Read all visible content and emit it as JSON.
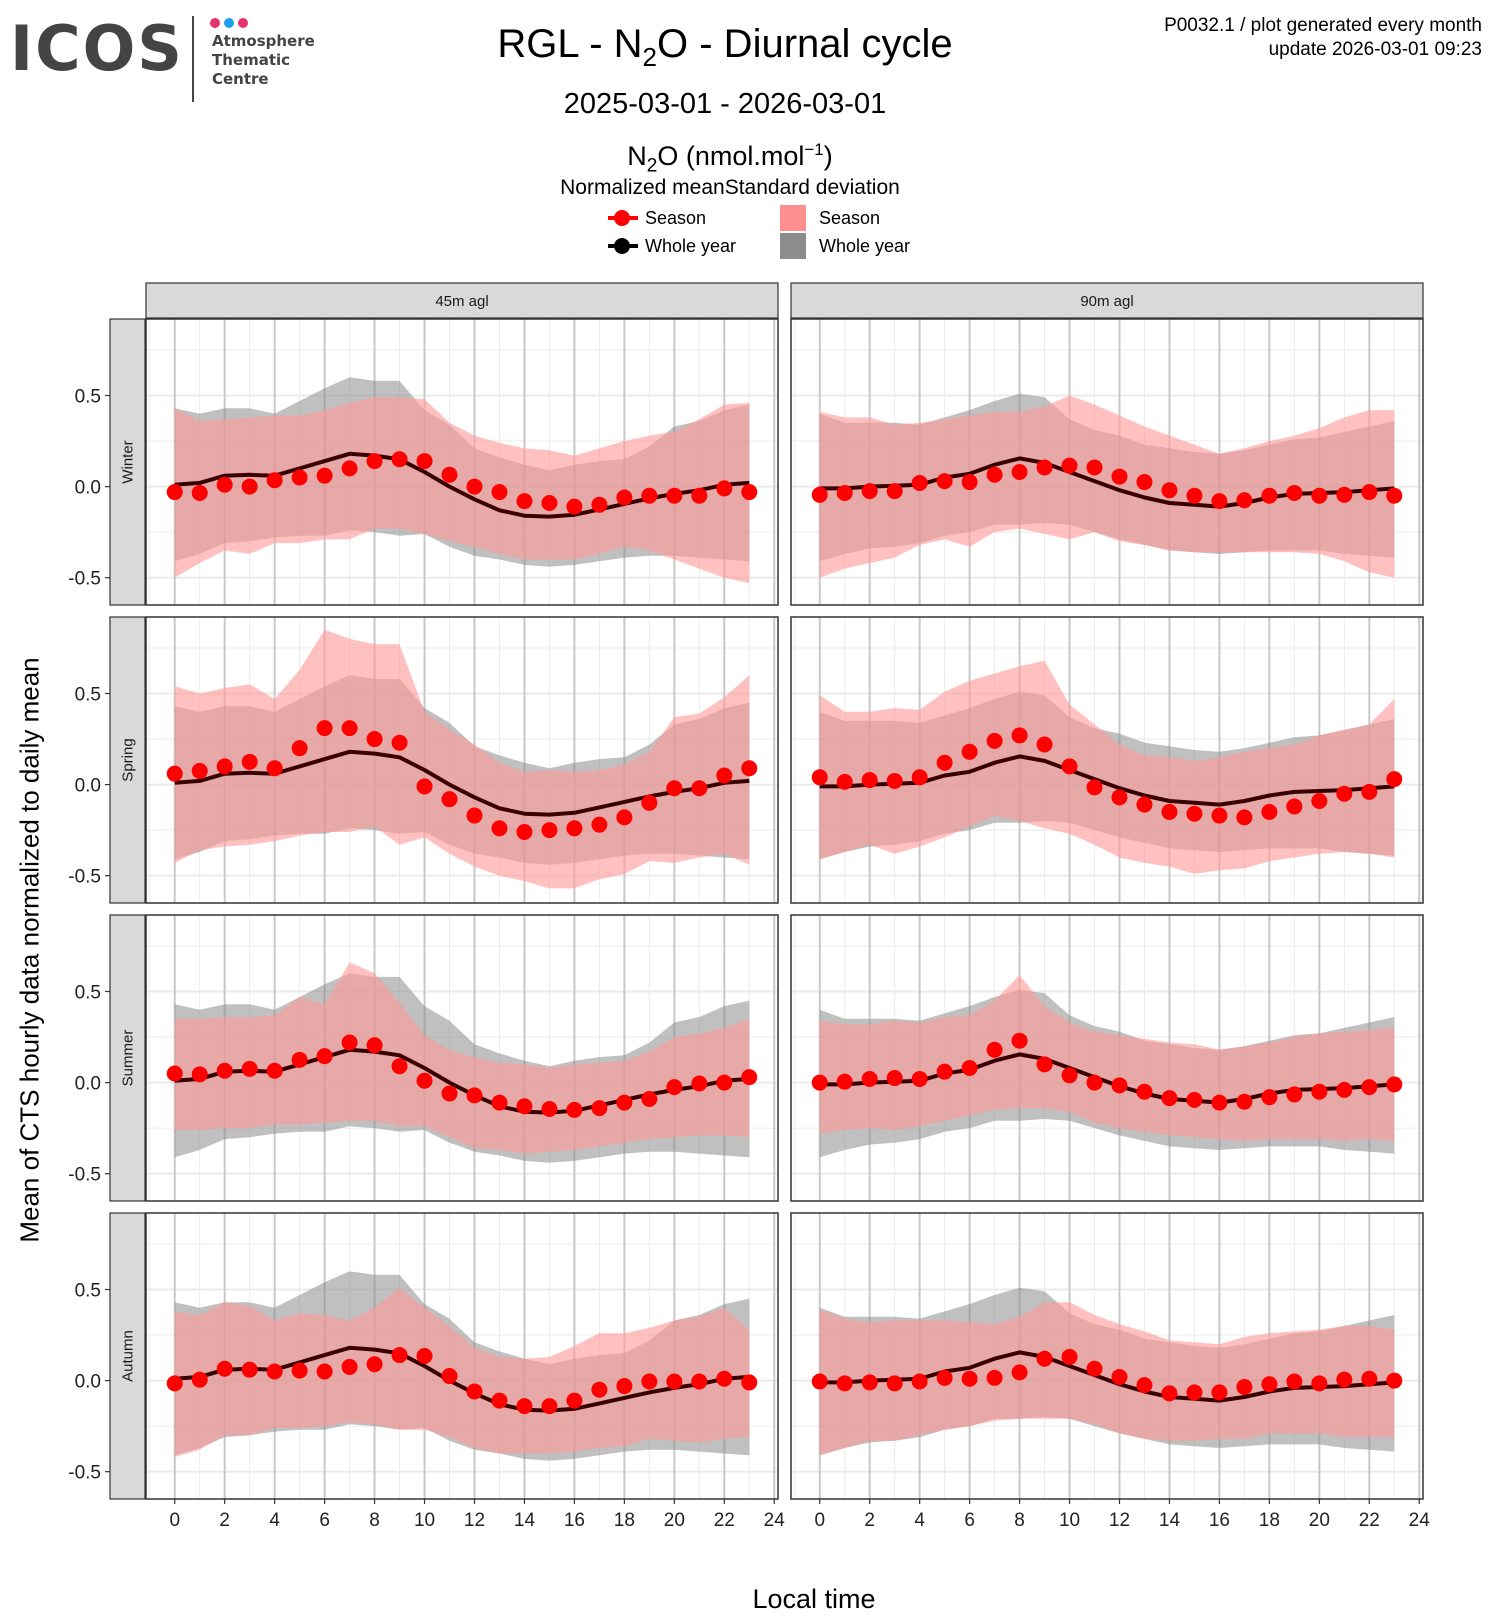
{
  "logo": {
    "name": "ICOS",
    "subtitle_lines": [
      "Atmosphere",
      "Thematic",
      "Centre"
    ],
    "dot_colors": [
      "#e6336f",
      "#1ea1e8",
      "#e6336f"
    ]
  },
  "header": {
    "title_prefix": "RGL - N",
    "title_sub": "2",
    "title_suffix": "O - Diurnal cycle",
    "date_range": "2025-03-01 - 2026-03-01",
    "meta_line1": "P0032.1 / plot generated every month",
    "meta_line2": "update  2026-03-01 09:23"
  },
  "legend": {
    "title_prefix": "N",
    "title_sub": "2",
    "title_mid": "O (nmol.mol",
    "title_sup": "−1",
    "title_suffix": ")",
    "subtitle": "Normalized meanStandard deviation",
    "mean_items": [
      {
        "label": "Season",
        "color": "#ff0000"
      },
      {
        "label": "Whole year",
        "color": "#000000"
      }
    ],
    "sd_items": [
      {
        "label": "Season",
        "color": "#ff8f8f"
      },
      {
        "label": "Whole year",
        "color": "#8c8c8c"
      }
    ]
  },
  "colors": {
    "season_point": "#ff0000",
    "year_line": "#3a0000",
    "season_band": "#ff9999",
    "year_band": "#8c8c8c",
    "strip_bg": "#d9d9d9",
    "grid_major": "#c8c8c8",
    "grid_minor": "#ebebeb"
  },
  "chart_data": {
    "type": "line",
    "title": "RGL - N2O - Diurnal cycle",
    "subtitle": "2025-03-01 - 2026-03-01",
    "xlabel": "Local time",
    "ylabel": "Mean of CTS hourly data normalized to daily mean",
    "xlim": [
      -1.15,
      24.15
    ],
    "ylim": [
      -0.65,
      0.92
    ],
    "x_ticks": [
      "0",
      "2",
      "4",
      "6",
      "8",
      "10",
      "12",
      "14",
      "16",
      "18",
      "20",
      "22",
      "24"
    ],
    "y_ticks": [
      "-0.5",
      "0.0",
      "0.5"
    ],
    "y_tick_values": [
      -0.5,
      0.0,
      0.5
    ],
    "x_tick_values": [
      0,
      2,
      4,
      6,
      8,
      10,
      12,
      14,
      16,
      18,
      20,
      22,
      24
    ],
    "grid": true,
    "legend_position": "top",
    "x": [
      0,
      1,
      2,
      3,
      4,
      5,
      6,
      7,
      8,
      9,
      10,
      11,
      12,
      13,
      14,
      15,
      16,
      17,
      18,
      19,
      20,
      21,
      22,
      23
    ],
    "columns": [
      "45m agl",
      "90m agl"
    ],
    "rows": [
      "Winter",
      "Spring",
      "Summer",
      "Autumn"
    ],
    "whole_year": {
      "45m agl": {
        "mean": [
          0.01,
          0.02,
          0.06,
          0.065,
          0.06,
          0.1,
          0.14,
          0.18,
          0.17,
          0.15,
          0.08,
          0.0,
          -0.07,
          -0.13,
          -0.16,
          -0.165,
          -0.155,
          -0.125,
          -0.095,
          -0.065,
          -0.04,
          -0.02,
          0.01,
          0.02
        ],
        "upper": [
          0.43,
          0.4,
          0.43,
          0.43,
          0.4,
          0.47,
          0.54,
          0.6,
          0.58,
          0.58,
          0.42,
          0.34,
          0.21,
          0.16,
          0.12,
          0.09,
          0.12,
          0.14,
          0.15,
          0.22,
          0.33,
          0.36,
          0.42,
          0.45
        ],
        "lower": [
          -0.41,
          -0.37,
          -0.31,
          -0.3,
          -0.28,
          -0.27,
          -0.27,
          -0.24,
          -0.25,
          -0.27,
          -0.26,
          -0.33,
          -0.38,
          -0.4,
          -0.43,
          -0.44,
          -0.43,
          -0.41,
          -0.39,
          -0.38,
          -0.38,
          -0.39,
          -0.4,
          -0.41
        ]
      },
      "90m agl": {
        "mean": [
          -0.01,
          -0.01,
          0.0,
          0.005,
          0.01,
          0.05,
          0.07,
          0.12,
          0.155,
          0.13,
          0.08,
          0.03,
          -0.02,
          -0.06,
          -0.09,
          -0.1,
          -0.11,
          -0.09,
          -0.06,
          -0.04,
          -0.035,
          -0.03,
          -0.02,
          -0.01
        ],
        "upper": [
          0.4,
          0.35,
          0.35,
          0.35,
          0.34,
          0.38,
          0.42,
          0.47,
          0.51,
          0.49,
          0.37,
          0.31,
          0.28,
          0.23,
          0.21,
          0.19,
          0.18,
          0.2,
          0.23,
          0.26,
          0.27,
          0.3,
          0.33,
          0.36
        ],
        "lower": [
          -0.41,
          -0.37,
          -0.34,
          -0.33,
          -0.31,
          -0.27,
          -0.25,
          -0.21,
          -0.21,
          -0.2,
          -0.21,
          -0.25,
          -0.29,
          -0.32,
          -0.35,
          -0.36,
          -0.37,
          -0.36,
          -0.35,
          -0.35,
          -0.35,
          -0.37,
          -0.38,
          -0.39
        ]
      }
    },
    "season": {
      "45m agl": {
        "Winter": {
          "mean": [
            -0.03,
            -0.035,
            0.01,
            0.0,
            0.035,
            0.05,
            0.06,
            0.1,
            0.14,
            0.15,
            0.14,
            0.065,
            0.0,
            -0.03,
            -0.08,
            -0.09,
            -0.11,
            -0.1,
            -0.06,
            -0.05,
            -0.05,
            -0.05,
            -0.01,
            -0.03
          ],
          "upper": [
            0.43,
            0.36,
            0.37,
            0.38,
            0.39,
            0.39,
            0.42,
            0.46,
            0.49,
            0.49,
            0.48,
            0.35,
            0.28,
            0.24,
            0.21,
            0.2,
            0.17,
            0.21,
            0.25,
            0.28,
            0.3,
            0.37,
            0.45,
            0.46
          ],
          "lower": [
            -0.5,
            -0.42,
            -0.35,
            -0.37,
            -0.31,
            -0.31,
            -0.29,
            -0.29,
            -0.23,
            -0.23,
            -0.26,
            -0.3,
            -0.33,
            -0.37,
            -0.4,
            -0.4,
            -0.4,
            -0.37,
            -0.33,
            -0.35,
            -0.4,
            -0.45,
            -0.5,
            -0.53
          ]
        },
        "Spring": {
          "mean": [
            0.06,
            0.075,
            0.1,
            0.125,
            0.09,
            0.2,
            0.31,
            0.31,
            0.25,
            0.23,
            -0.01,
            -0.08,
            -0.17,
            -0.24,
            -0.26,
            -0.25,
            -0.24,
            -0.22,
            -0.18,
            -0.1,
            -0.02,
            -0.02,
            0.05,
            0.09
          ],
          "upper": [
            0.54,
            0.5,
            0.53,
            0.55,
            0.47,
            0.63,
            0.85,
            0.8,
            0.77,
            0.77,
            0.4,
            0.3,
            0.22,
            0.12,
            0.07,
            0.08,
            0.07,
            0.08,
            0.11,
            0.18,
            0.37,
            0.39,
            0.48,
            0.6
          ],
          "lower": [
            -0.43,
            -0.36,
            -0.34,
            -0.33,
            -0.31,
            -0.28,
            -0.26,
            -0.26,
            -0.23,
            -0.33,
            -0.29,
            -0.38,
            -0.45,
            -0.5,
            -0.53,
            -0.57,
            -0.57,
            -0.52,
            -0.49,
            -0.42,
            -0.43,
            -0.4,
            -0.38,
            -0.44
          ]
        },
        "Summer": {
          "mean": [
            0.05,
            0.045,
            0.065,
            0.075,
            0.065,
            0.125,
            0.145,
            0.22,
            0.205,
            0.09,
            0.01,
            -0.06,
            -0.07,
            -0.11,
            -0.13,
            -0.145,
            -0.15,
            -0.14,
            -0.11,
            -0.09,
            -0.025,
            -0.005,
            0.0,
            0.03
          ],
          "upper": [
            0.35,
            0.35,
            0.36,
            0.36,
            0.37,
            0.47,
            0.43,
            0.66,
            0.6,
            0.44,
            0.26,
            0.18,
            0.14,
            0.11,
            0.1,
            0.08,
            0.1,
            0.11,
            0.12,
            0.17,
            0.25,
            0.27,
            0.3,
            0.35
          ],
          "lower": [
            -0.26,
            -0.26,
            -0.25,
            -0.25,
            -0.23,
            -0.23,
            -0.22,
            -0.21,
            -0.21,
            -0.24,
            -0.24,
            -0.3,
            -0.36,
            -0.37,
            -0.39,
            -0.38,
            -0.37,
            -0.35,
            -0.33,
            -0.31,
            -0.3,
            -0.29,
            -0.29,
            -0.3
          ]
        },
        "Autumn": {
          "mean": [
            -0.015,
            0.005,
            0.065,
            0.06,
            0.05,
            0.055,
            0.05,
            0.075,
            0.09,
            0.14,
            0.135,
            0.025,
            -0.06,
            -0.11,
            -0.14,
            -0.14,
            -0.11,
            -0.05,
            -0.03,
            -0.005,
            -0.005,
            -0.005,
            0.01,
            -0.01
          ],
          "upper": [
            0.38,
            0.36,
            0.43,
            0.41,
            0.33,
            0.37,
            0.36,
            0.33,
            0.4,
            0.51,
            0.4,
            0.3,
            0.18,
            0.13,
            0.12,
            0.13,
            0.19,
            0.26,
            0.26,
            0.29,
            0.33,
            0.35,
            0.4,
            0.28
          ],
          "lower": [
            -0.42,
            -0.38,
            -0.3,
            -0.3,
            -0.26,
            -0.26,
            -0.25,
            -0.23,
            -0.24,
            -0.27,
            -0.27,
            -0.31,
            -0.37,
            -0.4,
            -0.4,
            -0.4,
            -0.39,
            -0.37,
            -0.36,
            -0.32,
            -0.33,
            -0.34,
            -0.32,
            -0.31
          ]
        }
      },
      "90m agl": {
        "Winter": {
          "mean": [
            -0.045,
            -0.035,
            -0.025,
            -0.025,
            0.02,
            0.03,
            0.025,
            0.065,
            0.08,
            0.105,
            0.115,
            0.105,
            0.055,
            0.025,
            -0.02,
            -0.05,
            -0.08,
            -0.075,
            -0.05,
            -0.035,
            -0.05,
            -0.045,
            -0.03,
            -0.05
          ],
          "upper": [
            0.41,
            0.38,
            0.38,
            0.34,
            0.35,
            0.37,
            0.39,
            0.41,
            0.41,
            0.44,
            0.5,
            0.45,
            0.39,
            0.33,
            0.28,
            0.23,
            0.18,
            0.21,
            0.25,
            0.28,
            0.32,
            0.38,
            0.42,
            0.42
          ],
          "lower": [
            -0.5,
            -0.45,
            -0.42,
            -0.39,
            -0.32,
            -0.29,
            -0.33,
            -0.25,
            -0.23,
            -0.26,
            -0.29,
            -0.25,
            -0.3,
            -0.32,
            -0.35,
            -0.36,
            -0.36,
            -0.36,
            -0.36,
            -0.36,
            -0.37,
            -0.41,
            -0.47,
            -0.5
          ]
        },
        "Spring": {
          "mean": [
            0.04,
            0.015,
            0.025,
            0.02,
            0.04,
            0.12,
            0.18,
            0.24,
            0.27,
            0.22,
            0.1,
            -0.015,
            -0.07,
            -0.11,
            -0.15,
            -0.16,
            -0.17,
            -0.18,
            -0.15,
            -0.12,
            -0.09,
            -0.05,
            -0.04,
            0.03
          ],
          "upper": [
            0.49,
            0.4,
            0.4,
            0.42,
            0.41,
            0.51,
            0.57,
            0.61,
            0.65,
            0.68,
            0.44,
            0.33,
            0.22,
            0.16,
            0.15,
            0.13,
            0.15,
            0.18,
            0.2,
            0.22,
            0.27,
            0.3,
            0.33,
            0.47
          ],
          "lower": [
            -0.41,
            -0.37,
            -0.33,
            -0.38,
            -0.34,
            -0.29,
            -0.23,
            -0.17,
            -0.2,
            -0.24,
            -0.27,
            -0.33,
            -0.4,
            -0.43,
            -0.45,
            -0.49,
            -0.47,
            -0.46,
            -0.42,
            -0.4,
            -0.38,
            -0.37,
            -0.38,
            -0.4
          ]
        },
        "Summer": {
          "mean": [
            0.0,
            0.005,
            0.02,
            0.025,
            0.02,
            0.06,
            0.08,
            0.18,
            0.23,
            0.1,
            0.04,
            0.0,
            -0.015,
            -0.05,
            -0.085,
            -0.095,
            -0.11,
            -0.105,
            -0.08,
            -0.065,
            -0.05,
            -0.04,
            -0.025,
            -0.01
          ],
          "upper": [
            0.34,
            0.32,
            0.32,
            0.34,
            0.33,
            0.36,
            0.37,
            0.45,
            0.59,
            0.42,
            0.33,
            0.28,
            0.26,
            0.24,
            0.22,
            0.21,
            0.18,
            0.2,
            0.22,
            0.25,
            0.27,
            0.28,
            0.29,
            0.3
          ],
          "lower": [
            -0.28,
            -0.26,
            -0.25,
            -0.26,
            -0.24,
            -0.21,
            -0.18,
            -0.15,
            -0.14,
            -0.14,
            -0.16,
            -0.22,
            -0.25,
            -0.27,
            -0.29,
            -0.3,
            -0.31,
            -0.32,
            -0.31,
            -0.31,
            -0.31,
            -0.32,
            -0.31,
            -0.32
          ]
        },
        "Autumn": {
          "mean": [
            -0.005,
            -0.015,
            -0.01,
            -0.015,
            -0.005,
            0.015,
            0.01,
            0.015,
            0.045,
            0.12,
            0.13,
            0.065,
            0.02,
            -0.025,
            -0.07,
            -0.065,
            -0.065,
            -0.035,
            -0.02,
            -0.005,
            -0.015,
            0.005,
            0.01,
            0.0
          ],
          "upper": [
            0.39,
            0.34,
            0.32,
            0.33,
            0.33,
            0.33,
            0.32,
            0.31,
            0.35,
            0.43,
            0.43,
            0.36,
            0.31,
            0.27,
            0.22,
            0.21,
            0.2,
            0.24,
            0.26,
            0.27,
            0.28,
            0.3,
            0.3,
            0.28
          ],
          "lower": [
            -0.41,
            -0.37,
            -0.33,
            -0.33,
            -0.3,
            -0.27,
            -0.25,
            -0.22,
            -0.21,
            -0.21,
            -0.21,
            -0.24,
            -0.29,
            -0.32,
            -0.33,
            -0.33,
            -0.32,
            -0.32,
            -0.29,
            -0.29,
            -0.29,
            -0.31,
            -0.31,
            -0.31
          ]
        }
      }
    }
  }
}
